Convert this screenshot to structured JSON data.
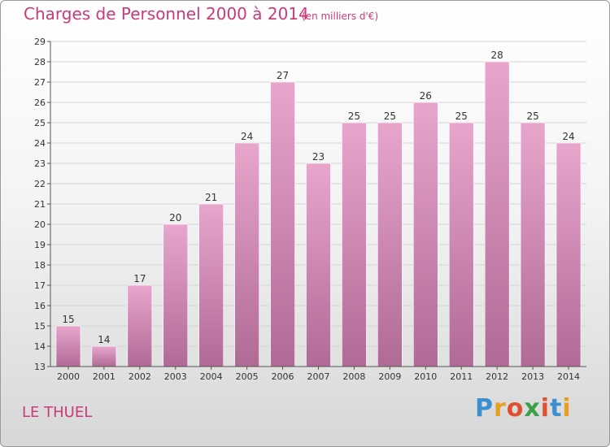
{
  "header": {
    "title": "Charges de Personnel 2000 à 2014",
    "subtitle": "(en milliers d'€)"
  },
  "footer": {
    "commune": "LE THUEL",
    "logo_letters": [
      "P",
      "r",
      "o",
      "x",
      "i",
      "t",
      "i"
    ],
    "logo_colors": [
      "#3a8fd0",
      "#e8a020",
      "#e05030",
      "#3aa048",
      "#e05030",
      "#3a8fd0",
      "#e8a020"
    ]
  },
  "colors": {
    "bar_top": "#e8a6cc",
    "bar_bottom": "#b06a96",
    "accent": "#c83a7a",
    "grid": "#d4d4d4",
    "axis": "#555555"
  },
  "chart_data": {
    "type": "bar",
    "title": "Charges de Personnel 2000 à 2014",
    "subtitle": "(en milliers d'€)",
    "xlabel": "",
    "ylabel": "",
    "categories": [
      "2000",
      "2001",
      "2002",
      "2003",
      "2004",
      "2005",
      "2006",
      "2007",
      "2008",
      "2009",
      "2010",
      "2011",
      "2012",
      "2013",
      "2014"
    ],
    "values": [
      15,
      14,
      17,
      20,
      21,
      24,
      27,
      23,
      25,
      25,
      26,
      25,
      28,
      25,
      24
    ],
    "ylim": [
      13,
      29
    ],
    "yticks": [
      13,
      14,
      15,
      16,
      17,
      18,
      19,
      20,
      21,
      22,
      23,
      24,
      25,
      26,
      27,
      28,
      29
    ],
    "grid": true,
    "data_labels": true
  }
}
